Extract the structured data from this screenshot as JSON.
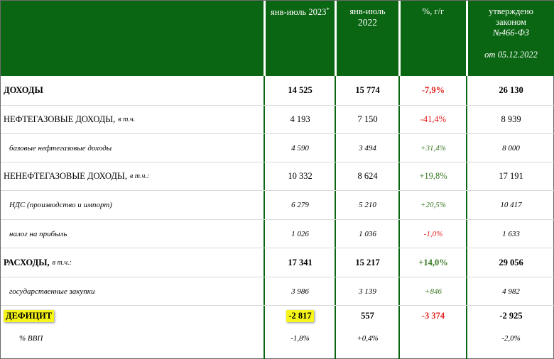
{
  "header": {
    "col1": "янв-июль 2023",
    "col1_mark": "*",
    "col2_line1": "янв-июль",
    "col2_line2": "2022",
    "col3": "%, г/г",
    "col4_line1": "утверждено",
    "col4_line2": "законом",
    "col4_line3": "№466-ФЗ",
    "col4_line4": "от 05.12.2022"
  },
  "rows": [
    {
      "label": "ДОХОДЫ",
      "note": "",
      "v2023": "14 525",
      "v2022": "15 774",
      "yoy": "-7,9%",
      "law": "26 130"
    },
    {
      "label": "НЕФТЕГАЗОВЫЕ ДОХОДЫ,",
      "note": "в т.ч.",
      "v2023": "4 193",
      "v2022": "7 150",
      "yoy": "-41,4%",
      "law": "8 939"
    },
    {
      "label": "базовые нефтегазовые доходы",
      "note": "",
      "v2023": "4 590",
      "v2022": "3 494",
      "yoy": "+31,4%",
      "law": "8 000"
    },
    {
      "label": "НЕНЕФТЕГАЗОВЫЕ ДОХОДЫ,",
      "note": "в т.ч.:",
      "v2023": "10 332",
      "v2022": "8 624",
      "yoy": "+19,8%",
      "law": "17 191"
    },
    {
      "label": "НДС (производство и импорт)",
      "note": "",
      "v2023": "6 279",
      "v2022": "5 210",
      "yoy": "+20,5%",
      "law": "10 417"
    },
    {
      "label": "налог на прибыль",
      "note": "",
      "v2023": "1 026",
      "v2022": "1 036",
      "yoy": "-1,0%",
      "law": "1 633"
    },
    {
      "label": "РАСХОДЫ,",
      "note": "в т.ч.:",
      "v2023": "17 341",
      "v2022": "15 217",
      "yoy": "+14,0%",
      "law": "29 056"
    },
    {
      "label": "государственные закупки",
      "note": "",
      "v2023": "3 986",
      "v2022": "3 139",
      "yoy": "+846",
      "law": "4 982"
    },
    {
      "label": "ДЕФИЦИТ",
      "note": "",
      "v2023": "-2 817",
      "v2022": "557",
      "yoy": "-3 374",
      "law": "-2 925"
    },
    {
      "label": "% ВВП",
      "note": "",
      "v2023": "-1,8%",
      "v2022": "+0,4%",
      "yoy": "",
      "law": "-2,0%"
    }
  ],
  "colors": {
    "header_bg": "#0b6614",
    "negative": "#e0201c",
    "positive": "#3a7a25",
    "highlight": "#f6f51a"
  }
}
